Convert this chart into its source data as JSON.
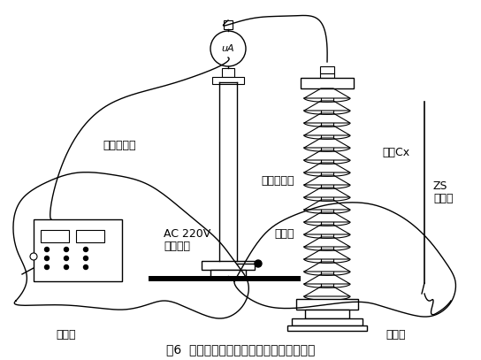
{
  "title": "图6  试品试验接线示意图及接地线联接方法",
  "bg_color": "#ffffff",
  "line_color": "#000000",
  "labels": {
    "lian_jie": "联接电缆线",
    "ac_220v": "AC 220V",
    "an_quan": "安全距离",
    "jie_di_left": "接地线",
    "jie_di_right": "接地线",
    "jie_di_mid": "接地线",
    "gao_ya": "高压发生器",
    "shi_pin": "试品Cx",
    "zs": "ZS",
    "fang_dian": "放电棒",
    "ua": "uA"
  },
  "font_size_label": 9,
  "font_size_title": 10
}
